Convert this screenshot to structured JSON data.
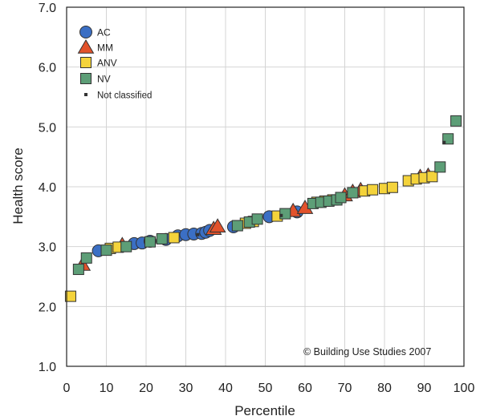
{
  "chart_data": {
    "type": "scatter",
    "xlabel": "Percentile",
    "ylabel": "Health score",
    "xlim": [
      0,
      100
    ],
    "ylim": [
      1.0,
      7.0
    ],
    "x_ticks": [
      "0",
      "10",
      "20",
      "30",
      "40",
      "50",
      "60",
      "70",
      "80",
      "90",
      "100"
    ],
    "y_ticks": [
      "1.0",
      "2.0",
      "3.0",
      "4.0",
      "5.0",
      "6.0",
      "7.0"
    ],
    "grid": true,
    "legend_position": "top-left",
    "annotation": "© Building Use Studies 2007",
    "colors": {
      "AC": "#3b6fc4",
      "MM": "#e2522b",
      "ANV": "#f4d33b",
      "NV": "#5d9e77",
      "Not classified": "#333333"
    },
    "series": [
      {
        "name": "AC",
        "marker": "circle",
        "points": [
          [
            8,
            2.93
          ],
          [
            17,
            3.05
          ],
          [
            19,
            3.06
          ],
          [
            21,
            3.09
          ],
          [
            25,
            3.12
          ],
          [
            28,
            3.18
          ],
          [
            30,
            3.2
          ],
          [
            32,
            3.21
          ],
          [
            34,
            3.22
          ],
          [
            35,
            3.24
          ],
          [
            36,
            3.27
          ],
          [
            42,
            3.33
          ],
          [
            51,
            3.5
          ],
          [
            58,
            3.58
          ]
        ]
      },
      {
        "name": "MM",
        "marker": "triangle",
        "points": [
          [
            4,
            2.7
          ],
          [
            14,
            3.03
          ],
          [
            37,
            3.3
          ],
          [
            38,
            3.34
          ],
          [
            57,
            3.6
          ],
          [
            60,
            3.65
          ],
          [
            70,
            3.86
          ],
          [
            72,
            3.92
          ],
          [
            74,
            3.95
          ],
          [
            89,
            4.17
          ],
          [
            91,
            4.19
          ]
        ]
      },
      {
        "name": "ANV",
        "marker": "square",
        "points": [
          [
            1,
            2.17
          ],
          [
            11,
            2.97
          ],
          [
            13,
            2.99
          ],
          [
            27,
            3.15
          ],
          [
            45,
            3.39
          ],
          [
            47,
            3.42
          ],
          [
            53,
            3.51
          ],
          [
            63,
            3.74
          ],
          [
            65,
            3.76
          ],
          [
            67,
            3.78
          ],
          [
            75,
            3.93
          ],
          [
            77,
            3.95
          ],
          [
            80,
            3.97
          ],
          [
            82,
            3.99
          ],
          [
            86,
            4.1
          ],
          [
            88,
            4.13
          ],
          [
            90,
            4.15
          ],
          [
            92,
            4.17
          ]
        ]
      },
      {
        "name": "NV",
        "marker": "square",
        "points": [
          [
            3,
            2.62
          ],
          [
            5,
            2.81
          ],
          [
            10,
            2.94
          ],
          [
            15,
            3.0
          ],
          [
            21,
            3.08
          ],
          [
            24,
            3.13
          ],
          [
            43,
            3.35
          ],
          [
            46,
            3.41
          ],
          [
            48,
            3.46
          ],
          [
            55,
            3.55
          ],
          [
            62,
            3.72
          ],
          [
            64,
            3.74
          ],
          [
            66,
            3.76
          ],
          [
            68,
            3.78
          ],
          [
            69,
            3.82
          ],
          [
            72,
            3.9
          ],
          [
            94,
            4.33
          ],
          [
            96,
            4.8
          ],
          [
            98,
            5.1
          ]
        ]
      },
      {
        "name": "Not classified",
        "marker": "small-square",
        "points": [
          [
            33,
            3.2
          ],
          [
            54,
            3.52
          ],
          [
            95,
            4.74
          ]
        ]
      }
    ]
  }
}
